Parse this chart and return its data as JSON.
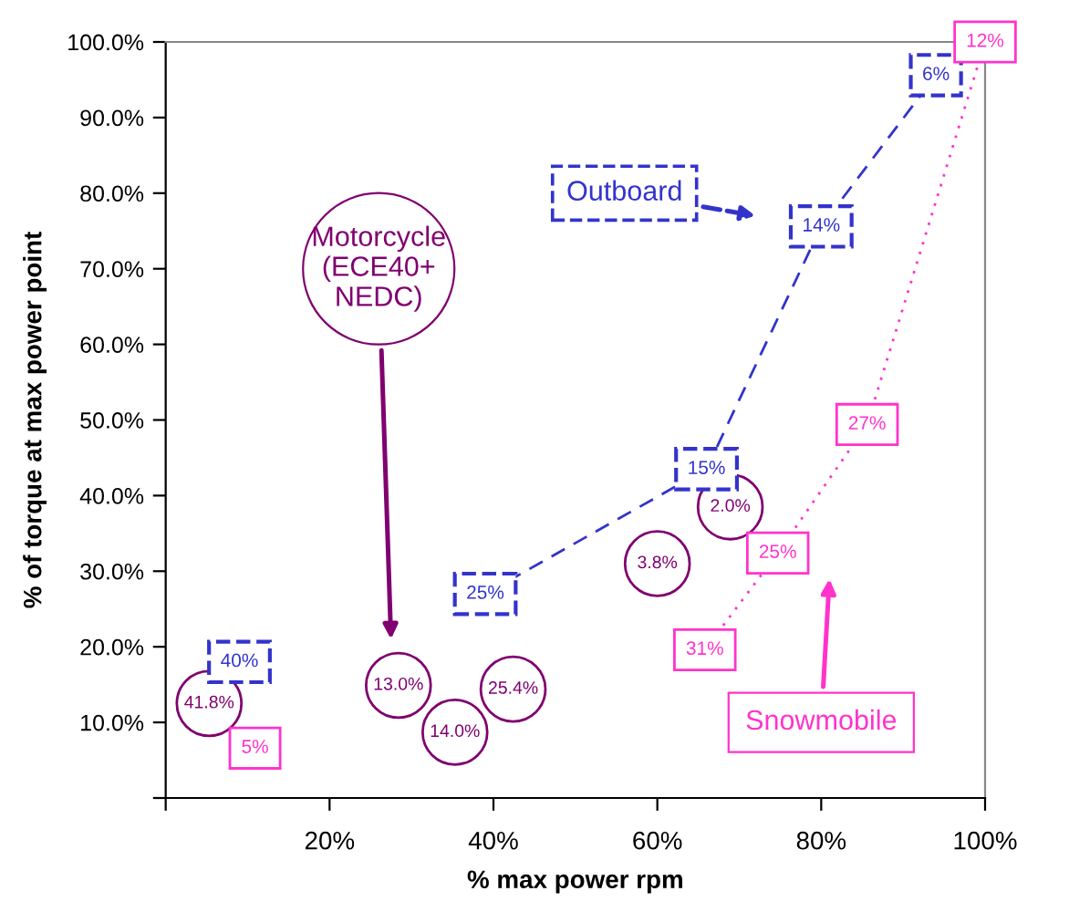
{
  "chart_data": {
    "type": "scatter",
    "xlabel": "% max power rpm",
    "ylabel": "% of torque at max power point",
    "xlim": [
      0,
      100
    ],
    "ylim": [
      0,
      100
    ],
    "xticks": [
      {
        "value": 0,
        "label": null
      },
      {
        "value": 20,
        "label": "20%"
      },
      {
        "value": 40,
        "label": "40%"
      },
      {
        "value": 60,
        "label": "60%"
      },
      {
        "value": 80,
        "label": "80%"
      },
      {
        "value": 100,
        "label": "100%"
      }
    ],
    "yticks": [
      {
        "value": 0,
        "label": null
      },
      {
        "value": 10,
        "label": "10.0%"
      },
      {
        "value": 20,
        "label": "20.0%"
      },
      {
        "value": 30,
        "label": "30.0%"
      },
      {
        "value": 40,
        "label": "40.0%"
      },
      {
        "value": 50,
        "label": "50.0%"
      },
      {
        "value": 60,
        "label": "60.0%"
      },
      {
        "value": 70,
        "label": "70.0%"
      },
      {
        "value": 80,
        "label": "80.0%"
      },
      {
        "value": 90,
        "label": "90.0%"
      },
      {
        "value": 100,
        "label": "100.0%"
      }
    ],
    "grid": false,
    "legend": false,
    "series": [
      {
        "type": "line",
        "color": "#3333cc",
        "line_style": "dashed",
        "marker": "square",
        "x": [
          39,
          66,
          80,
          94
        ],
        "values": [
          27,
          43.5,
          75.6,
          95.6
        ]
      },
      {
        "color": "#3333cc",
        "line_style": "dashed",
        "marker": "square",
        "x": [
          9
        ],
        "values": [
          18
        ]
      },
      {
        "type": "line",
        "color": "#ff33cc",
        "line_style": "dotted",
        "marker": "square",
        "x": [
          65.8,
          74.7,
          85.6,
          100
        ],
        "values": [
          19.6,
          32.4,
          49.4,
          100
        ]
      },
      {
        "color": "#ff33cc",
        "line_style": "solid",
        "marker": "square",
        "x": [
          10.9
        ],
        "values": [
          6.6
        ]
      },
      {
        "color": "#800070",
        "marker": "circle",
        "x": [
          5.3,
          28.4,
          35.3,
          42.4,
          60,
          68.9
        ],
        "values": [
          12.5,
          14.9,
          8.7,
          14.4,
          31,
          38.5
        ]
      }
    ],
    "annotations": [
      "Outboard",
      "Motorcycle\n(ECE40+\nNEDC)",
      "Snowmobile",
      {
        "text": "25%",
        "x": 39,
        "y": 27
      },
      {
        "text": "15%",
        "x": 66,
        "y": 43.5
      },
      {
        "text": "14%",
        "x": 80,
        "y": 75.6
      },
      {
        "text": "6%",
        "x": 94,
        "y": 95.6
      },
      {
        "text": "40%",
        "x": 9,
        "y": 18
      },
      {
        "text": "31%",
        "x": 65.8,
        "y": 19.6
      },
      {
        "text": "25%",
        "x": 74.7,
        "y": 32.4
      },
      {
        "text": "27%",
        "x": 85.6,
        "y": 49.4
      },
      {
        "text": "12%",
        "x": 100,
        "y": 100
      },
      {
        "text": "5%",
        "x": 10.9,
        "y": 6.6
      },
      {
        "text": "41.8%",
        "x": 5.3,
        "y": 12.5
      },
      {
        "text": "13.0%",
        "x": 28.4,
        "y": 14.9
      },
      {
        "text": "14.0%",
        "x": 35.3,
        "y": 8.7
      },
      {
        "text": "25.4%",
        "x": 42.4,
        "y": 14.4
      },
      {
        "text": "3.8%",
        "x": 60,
        "y": 31
      },
      {
        "text": "2.0%",
        "x": 68.9,
        "y": 38.5
      }
    ]
  }
}
